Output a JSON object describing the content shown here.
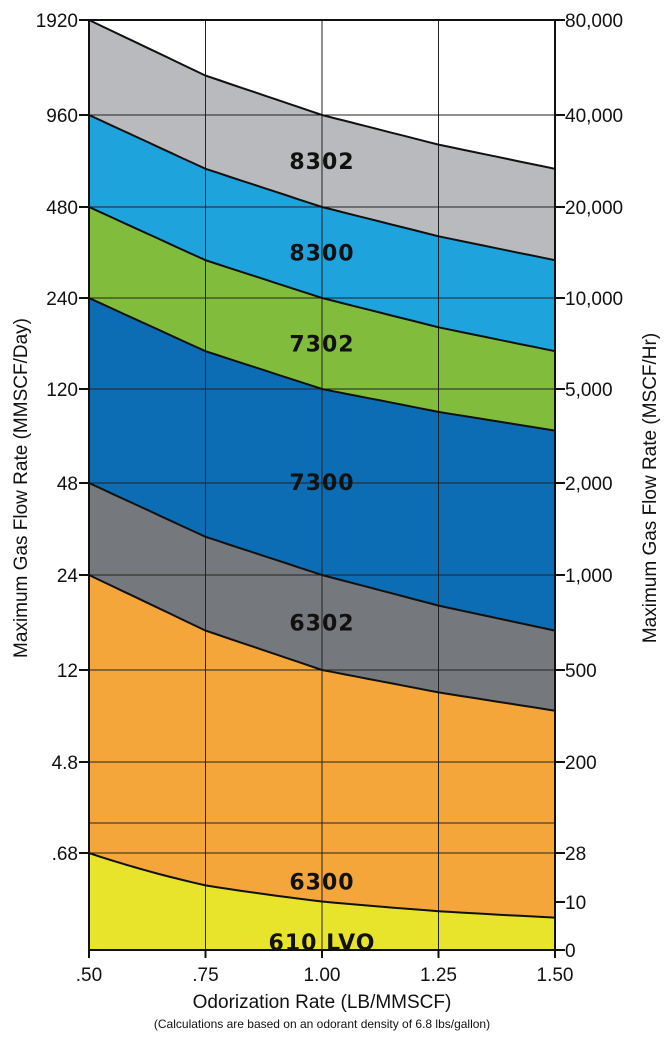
{
  "chart_data": {
    "type": "area",
    "title": "",
    "xlabel": "Odorization Rate (LB/MMSCF)",
    "footnote": "(Calculations are based on an odorant density of 6.8 lbs/gallon)",
    "ylabel_left": "Maximum Gas Flow Rate (MMSCF/Day)",
    "ylabel_right": "Maximum Gas Flow Rate (MSCF/Hr)",
    "x_ticks": [
      ".50",
      ".75",
      "1.00",
      "1.25",
      "1.50"
    ],
    "x_values": [
      0.5,
      0.75,
      1.0,
      1.25,
      1.5
    ],
    "x_range": [
      0.5,
      1.5
    ],
    "left_ticks": [
      "1920",
      "960",
      "480",
      "240",
      "120",
      "48",
      "24",
      "12",
      "4.8",
      ".68"
    ],
    "right_ticks": [
      "80,000",
      "40,000",
      "20,000",
      "10,000",
      "5,000",
      "2,000",
      "1,000",
      "500",
      "200",
      "28",
      "10",
      "0"
    ],
    "grid": true,
    "bands": [
      {
        "name": "8302",
        "color": "#b8babd",
        "upper": [
          1920,
          1280,
          960,
          768,
          640
        ],
        "lower": [
          960,
          640,
          480,
          384,
          320
        ]
      },
      {
        "name": "8300",
        "color": "#1fa3dc",
        "upper": [
          960,
          640,
          480,
          384,
          320
        ],
        "lower": [
          480,
          320,
          240,
          192,
          160
        ]
      },
      {
        "name": "7302",
        "color": "#82bc3c",
        "upper": [
          480,
          320,
          240,
          192,
          160
        ],
        "lower": [
          240,
          160,
          120,
          96,
          80
        ]
      },
      {
        "name": "7300",
        "color": "#0c6db5",
        "upper": [
          240,
          160,
          120,
          96,
          80
        ],
        "lower": [
          48,
          32,
          24,
          19.2,
          16
        ]
      },
      {
        "name": "6302",
        "color": "#75787c",
        "upper": [
          48,
          32,
          24,
          19.2,
          16
        ],
        "lower": [
          24,
          16,
          12,
          9.6,
          8
        ]
      },
      {
        "name": "6300",
        "color": "#f5a63a",
        "upper": [
          24,
          16,
          12,
          9.6,
          8
        ],
        "lower": [
          0,
          0,
          0,
          0,
          0
        ]
      },
      {
        "name": "610 LVO",
        "color": "#e8e42c",
        "upper": [
          0.68,
          0.453,
          0.34,
          0.272,
          0.227
        ],
        "lower": [
          0,
          0,
          0,
          0,
          0
        ]
      }
    ]
  }
}
